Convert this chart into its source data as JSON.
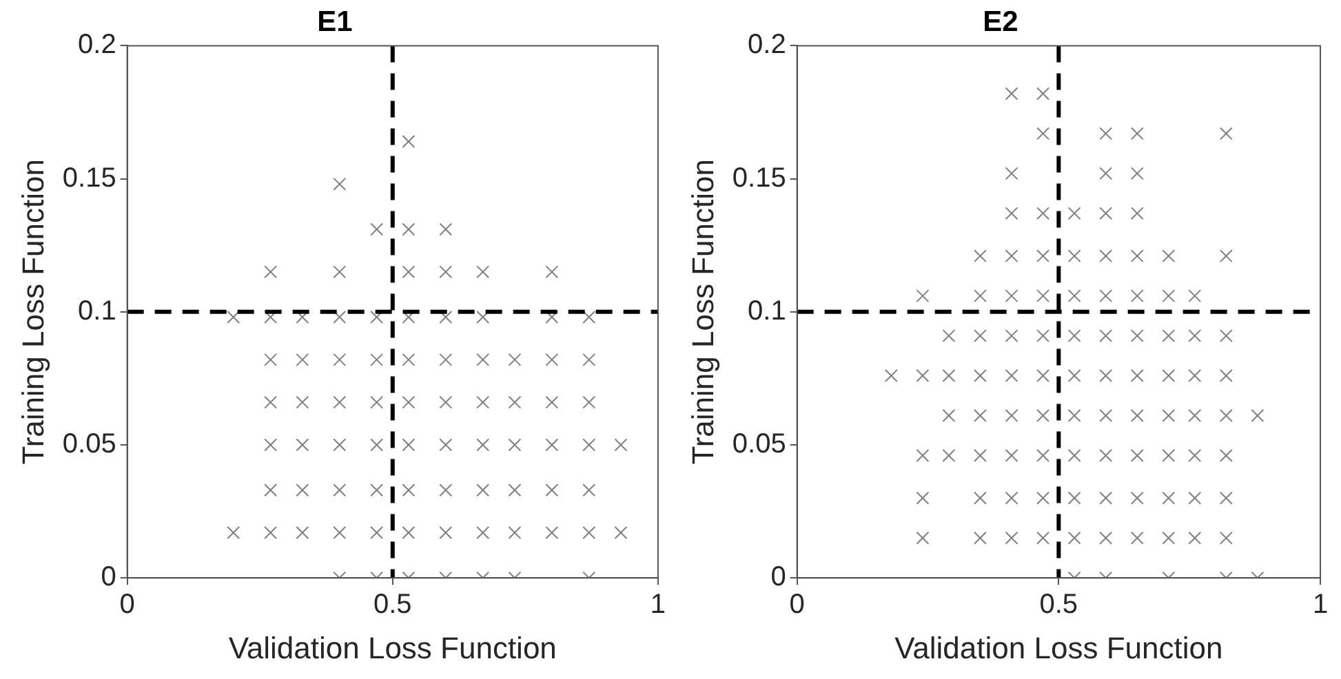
{
  "chart_data": [
    {
      "type": "scatter",
      "title": "E1",
      "xlabel": "Validation Loss Function",
      "ylabel": "Training Loss Function",
      "xlim": [
        0,
        1
      ],
      "ylim": [
        0,
        0.2
      ],
      "xticks": [
        0,
        0.5,
        1
      ],
      "yticks": [
        0,
        0.05,
        0.1,
        0.15,
        0.2
      ],
      "grid": false,
      "marker": "cross",
      "series": [
        {
          "color": "#808080",
          "x": [
            0.4,
            0.47,
            0.53,
            0.6,
            0.67,
            0.73,
            0.87,
            0.2,
            0.27,
            0.33,
            0.4,
            0.47,
            0.53,
            0.6,
            0.67,
            0.73,
            0.8,
            0.87,
            0.93,
            0.27,
            0.33,
            0.4,
            0.47,
            0.53,
            0.6,
            0.67,
            0.73,
            0.8,
            0.87,
            0.27,
            0.33,
            0.4,
            0.47,
            0.53,
            0.6,
            0.67,
            0.73,
            0.8,
            0.87,
            0.93,
            0.27,
            0.33,
            0.4,
            0.47,
            0.53,
            0.6,
            0.67,
            0.73,
            0.8,
            0.87,
            0.27,
            0.33,
            0.4,
            0.47,
            0.53,
            0.6,
            0.67,
            0.73,
            0.8,
            0.87,
            0.2,
            0.27,
            0.33,
            0.4,
            0.47,
            0.53,
            0.6,
            0.67,
            0.8,
            0.87,
            0.27,
            0.4,
            0.53,
            0.6,
            0.67,
            0.8,
            0.47,
            0.53,
            0.6,
            0.4,
            0.53
          ],
          "values": [
            0,
            0,
            0,
            0,
            0,
            0,
            0,
            0.017,
            0.017,
            0.017,
            0.017,
            0.017,
            0.017,
            0.017,
            0.017,
            0.017,
            0.017,
            0.017,
            0.017,
            0.033,
            0.033,
            0.033,
            0.033,
            0.033,
            0.033,
            0.033,
            0.033,
            0.033,
            0.033,
            0.05,
            0.05,
            0.05,
            0.05,
            0.05,
            0.05,
            0.05,
            0.05,
            0.05,
            0.05,
            0.05,
            0.066,
            0.066,
            0.066,
            0.066,
            0.066,
            0.066,
            0.066,
            0.066,
            0.066,
            0.066,
            0.082,
            0.082,
            0.082,
            0.082,
            0.082,
            0.082,
            0.082,
            0.082,
            0.082,
            0.082,
            0.098,
            0.098,
            0.098,
            0.098,
            0.098,
            0.098,
            0.098,
            0.098,
            0.098,
            0.098,
            0.115,
            0.115,
            0.115,
            0.115,
            0.115,
            0.115,
            0.131,
            0.131,
            0.131,
            0.148,
            0.164
          ]
        }
      ],
      "ref_lines": [
        {
          "axis": "x",
          "value": 0.5,
          "color": "#000000",
          "line_style": "dashed"
        },
        {
          "axis": "y",
          "value": 0.1,
          "color": "#000000",
          "line_style": "dashed"
        }
      ]
    },
    {
      "type": "scatter",
      "title": "E2",
      "xlabel": "Validation Loss Function",
      "ylabel": "Training Loss Function",
      "xlim": [
        0,
        1
      ],
      "ylim": [
        0,
        0.2
      ],
      "xticks": [
        0,
        0.5,
        1
      ],
      "yticks": [
        0,
        0.05,
        0.1,
        0.15,
        0.2
      ],
      "grid": false,
      "marker": "cross",
      "series": [
        {
          "color": "#808080",
          "x": [
            0.53,
            0.59,
            0.71,
            0.82,
            0.88,
            0.24,
            0.35,
            0.41,
            0.47,
            0.53,
            0.59,
            0.65,
            0.71,
            0.76,
            0.82,
            0.24,
            0.35,
            0.41,
            0.47,
            0.53,
            0.59,
            0.65,
            0.71,
            0.76,
            0.82,
            0.24,
            0.29,
            0.35,
            0.41,
            0.47,
            0.53,
            0.59,
            0.65,
            0.71,
            0.76,
            0.82,
            0.29,
            0.35,
            0.41,
            0.47,
            0.53,
            0.59,
            0.65,
            0.71,
            0.76,
            0.82,
            0.88,
            0.18,
            0.24,
            0.29,
            0.35,
            0.41,
            0.47,
            0.53,
            0.59,
            0.65,
            0.71,
            0.76,
            0.82,
            0.29,
            0.35,
            0.41,
            0.47,
            0.53,
            0.59,
            0.65,
            0.71,
            0.76,
            0.82,
            0.24,
            0.35,
            0.41,
            0.47,
            0.53,
            0.59,
            0.65,
            0.71,
            0.76,
            0.35,
            0.41,
            0.47,
            0.53,
            0.59,
            0.65,
            0.71,
            0.82,
            0.41,
            0.47,
            0.53,
            0.59,
            0.65,
            0.41,
            0.59,
            0.65,
            0.47,
            0.59,
            0.65,
            0.82,
            0.41,
            0.47
          ],
          "values": [
            0,
            0,
            0,
            0,
            0,
            0.015,
            0.015,
            0.015,
            0.015,
            0.015,
            0.015,
            0.015,
            0.015,
            0.015,
            0.015,
            0.03,
            0.03,
            0.03,
            0.03,
            0.03,
            0.03,
            0.03,
            0.03,
            0.03,
            0.03,
            0.046,
            0.046,
            0.046,
            0.046,
            0.046,
            0.046,
            0.046,
            0.046,
            0.046,
            0.046,
            0.046,
            0.061,
            0.061,
            0.061,
            0.061,
            0.061,
            0.061,
            0.061,
            0.061,
            0.061,
            0.061,
            0.061,
            0.076,
            0.076,
            0.076,
            0.076,
            0.076,
            0.076,
            0.076,
            0.076,
            0.076,
            0.076,
            0.076,
            0.076,
            0.091,
            0.091,
            0.091,
            0.091,
            0.091,
            0.091,
            0.091,
            0.091,
            0.091,
            0.091,
            0.106,
            0.106,
            0.106,
            0.106,
            0.106,
            0.106,
            0.106,
            0.106,
            0.106,
            0.121,
            0.121,
            0.121,
            0.121,
            0.121,
            0.121,
            0.121,
            0.121,
            0.137,
            0.137,
            0.137,
            0.137,
            0.137,
            0.152,
            0.152,
            0.152,
            0.167,
            0.167,
            0.167,
            0.167,
            0.182,
            0.182
          ]
        }
      ],
      "ref_lines": [
        {
          "axis": "x",
          "value": 0.5,
          "color": "#000000",
          "line_style": "dashed"
        },
        {
          "axis": "y",
          "value": 0.1,
          "color": "#000000",
          "line_style": "dashed"
        }
      ]
    }
  ]
}
